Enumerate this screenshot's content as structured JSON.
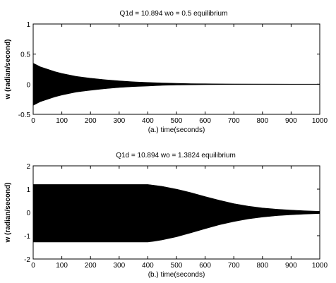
{
  "chart_data": [
    {
      "type": "area",
      "title": "Q1d = 10.894 wo = 0.5   equilibrium",
      "xlabel": "(a.)  time(seconds)",
      "ylabel": "w (radian/second)",
      "xlim": [
        0,
        1000
      ],
      "ylim": [
        -0.5,
        1
      ],
      "xticks": [
        "0",
        "100",
        "200",
        "300",
        "400",
        "500",
        "600",
        "700",
        "800",
        "900",
        "1000"
      ],
      "yticks": [
        "-0.5",
        "0",
        "0.5",
        "1"
      ],
      "grid": false,
      "series": [
        {
          "x": [
            0,
            25,
            50,
            75,
            100,
            150,
            200,
            250,
            300,
            350,
            400,
            450,
            500,
            550,
            600,
            650,
            700,
            800,
            900,
            1000
          ],
          "upper": [
            0.35,
            0.29,
            0.25,
            0.21,
            0.18,
            0.13,
            0.1,
            0.075,
            0.055,
            0.04,
            0.03,
            0.02,
            0.014,
            0.01,
            0.007,
            0.005,
            0.003,
            0.001,
            0.0005,
            0
          ],
          "lower": [
            -0.35,
            -0.29,
            -0.25,
            -0.21,
            -0.18,
            -0.13,
            -0.1,
            -0.075,
            -0.055,
            -0.04,
            -0.03,
            -0.02,
            -0.014,
            -0.01,
            -0.007,
            -0.005,
            -0.003,
            -0.001,
            -0.0005,
            0
          ]
        }
      ]
    },
    {
      "type": "area",
      "title": "Q1d = 10.894 wo = 1.3824   equilibrium",
      "xlabel": "(b.)  time(seconds)",
      "ylabel": "w (radian/second)",
      "xlim": [
        0,
        1000
      ],
      "ylim": [
        -2,
        2
      ],
      "xticks": [
        "0",
        "100",
        "200",
        "300",
        "400",
        "500",
        "600",
        "700",
        "800",
        "900",
        "1000"
      ],
      "yticks": [
        "-2",
        "-1",
        "0",
        "1",
        "2"
      ],
      "grid": false,
      "series": [
        {
          "x": [
            0,
            100,
            200,
            300,
            400,
            420,
            450,
            500,
            550,
            600,
            650,
            700,
            750,
            800,
            850,
            900,
            950,
            1000
          ],
          "upper": [
            1.2,
            1.2,
            1.2,
            1.2,
            1.2,
            1.17,
            1.12,
            1.0,
            0.85,
            0.68,
            0.52,
            0.38,
            0.27,
            0.19,
            0.14,
            0.1,
            0.07,
            0.05
          ],
          "lower": [
            -1.27,
            -1.27,
            -1.27,
            -1.27,
            -1.27,
            -1.24,
            -1.18,
            -1.05,
            -0.88,
            -0.7,
            -0.53,
            -0.39,
            -0.28,
            -0.2,
            -0.14,
            -0.1,
            -0.07,
            -0.05
          ]
        }
      ]
    }
  ]
}
